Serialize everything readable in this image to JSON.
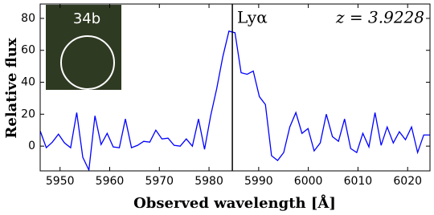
{
  "chart_data": {
    "type": "line",
    "xlabel": "Observed wavelength [Å]",
    "ylabel": "Relative flux",
    "annotations": [
      "Lyα",
      "z = 3.9228"
    ],
    "inset_label": "34b",
    "vline": 5984.7,
    "xlim": [
      5946,
      6024.5
    ],
    "ylim": [
      -15.5,
      89
    ],
    "xticks": [
      5950,
      5960,
      5970,
      5980,
      5990,
      6000,
      6010,
      6020
    ],
    "yticks": [
      0,
      20,
      40,
      60,
      80
    ],
    "x": [
      5946.0,
      5947.23,
      5948.45,
      5949.68,
      5950.9,
      5952.13,
      5953.36,
      5954.58,
      5955.81,
      5957.03,
      5958.26,
      5959.49,
      5960.71,
      5961.94,
      5963.16,
      5964.39,
      5965.62,
      5966.84,
      5968.07,
      5969.29,
      5970.52,
      5971.75,
      5972.97,
      5974.2,
      5975.42,
      5976.65,
      5977.88,
      5979.1,
      5980.33,
      5981.55,
      5982.78,
      5984.01,
      5985.23,
      5986.46,
      5987.68,
      5988.91,
      5990.14,
      5991.36,
      5992.59,
      5993.81,
      5995.04,
      5996.27,
      5997.49,
      5998.72,
      5999.94,
      6001.17,
      6002.4,
      6003.62,
      6004.85,
      6006.07,
      6007.3,
      6008.53,
      6009.75,
      6010.98,
      6012.2,
      6013.43,
      6014.66,
      6015.88,
      6017.11,
      6018.33,
      6019.56,
      6020.79,
      6022.01,
      6023.24,
      6024.46
    ],
    "series": [
      {
        "color": "#0000ff",
        "values": [
          9.5,
          -1,
          2.5,
          7.5,
          2,
          -1,
          21,
          -7,
          -15,
          19,
          1,
          8,
          -0.5,
          -1,
          17,
          -1,
          0.5,
          3,
          2.5,
          10,
          4.5,
          5,
          0.5,
          0,
          4.5,
          0,
          17,
          -2,
          19,
          36,
          56,
          72,
          71,
          46,
          45,
          47,
          31,
          26,
          -6,
          -9,
          -4,
          12,
          21,
          8,
          11,
          -3,
          2,
          20,
          6,
          3,
          17,
          -1.5,
          -4,
          8,
          -0.5,
          21,
          0.5,
          12,
          2,
          9,
          4,
          12,
          -4,
          7,
          7
        ]
      }
    ]
  }
}
